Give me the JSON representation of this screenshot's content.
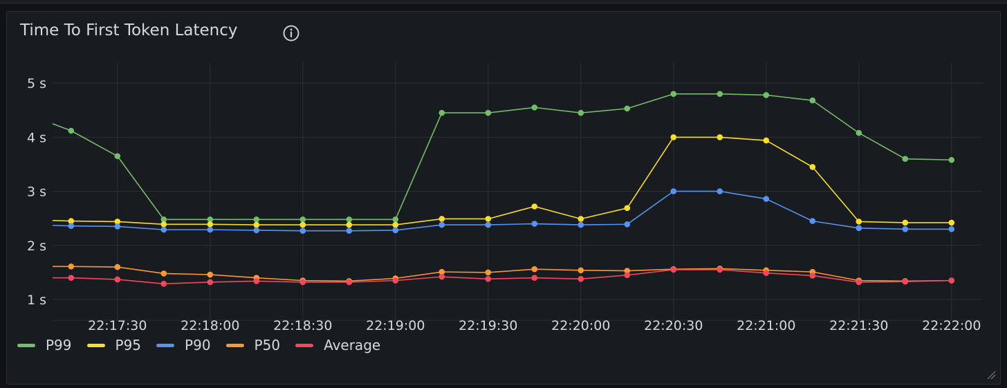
{
  "panel": {
    "title": "Time To First Token Latency",
    "info_icon": "info-circle-icon",
    "resize_icon": "resize-handle-icon"
  },
  "chart_data": {
    "type": "line",
    "title": "Time To First Token Latency",
    "xlabel": "",
    "ylabel": "",
    "grid": true,
    "legend_placement": "bottom-left",
    "y_unit": "s",
    "yticks": [
      1,
      2,
      3,
      4,
      5
    ],
    "yticklabels": [
      "1 s",
      "2 s",
      "3 s",
      "4 s",
      "5 s"
    ],
    "ylim": [
      0.85,
      5.5
    ],
    "xlim": [
      "22:17:09",
      "22:22:00"
    ],
    "xticklabels": [
      "22:17:30",
      "22:18:00",
      "22:18:30",
      "22:19:00",
      "22:19:30",
      "22:20:00",
      "22:20:30",
      "22:21:00",
      "22:21:30",
      "22:22:00"
    ],
    "x": [
      "22:17:15",
      "22:17:30",
      "22:17:45",
      "22:18:00",
      "22:18:15",
      "22:18:30",
      "22:18:45",
      "22:19:00",
      "22:19:15",
      "22:19:30",
      "22:19:45",
      "22:20:00",
      "22:20:15",
      "22:20:30",
      "22:20:45",
      "22:21:00",
      "22:21:15",
      "22:21:30",
      "22:21:45",
      "22:22:00"
    ],
    "series": [
      {
        "name": "P99",
        "color": "#73bf69",
        "leading_value": 4.25,
        "values": [
          4.12,
          3.65,
          2.48,
          2.48,
          2.48,
          2.48,
          2.48,
          2.48,
          4.45,
          4.45,
          4.55,
          4.45,
          4.53,
          4.8,
          4.8,
          4.78,
          4.68,
          4.08,
          3.6,
          3.58
        ]
      },
      {
        "name": "P95",
        "color": "#fade2a",
        "leading_value": 2.46,
        "values": [
          2.45,
          2.44,
          2.39,
          2.39,
          2.38,
          2.38,
          2.38,
          2.38,
          2.49,
          2.49,
          2.72,
          2.49,
          2.69,
          4.0,
          4.0,
          3.94,
          3.45,
          2.44,
          2.42,
          2.42
        ]
      },
      {
        "name": "P90",
        "color": "#5794f2",
        "leading_value": 2.37,
        "values": [
          2.36,
          2.35,
          2.29,
          2.29,
          2.28,
          2.27,
          2.27,
          2.28,
          2.38,
          2.38,
          2.4,
          2.38,
          2.39,
          3.0,
          3.0,
          2.86,
          2.45,
          2.32,
          2.3,
          2.3
        ]
      },
      {
        "name": "P50",
        "color": "#ff9830",
        "leading_value": 1.61,
        "values": [
          1.61,
          1.6,
          1.48,
          1.46,
          1.4,
          1.35,
          1.34,
          1.39,
          1.51,
          1.5,
          1.56,
          1.54,
          1.53,
          1.56,
          1.57,
          1.54,
          1.51,
          1.35,
          1.34,
          1.35
        ]
      },
      {
        "name": "Average",
        "color": "#f2495c",
        "leading_value": 1.4,
        "values": [
          1.4,
          1.37,
          1.29,
          1.32,
          1.34,
          1.32,
          1.32,
          1.35,
          1.42,
          1.38,
          1.4,
          1.38,
          1.45,
          1.55,
          1.55,
          1.49,
          1.44,
          1.32,
          1.33,
          1.35
        ]
      }
    ]
  }
}
